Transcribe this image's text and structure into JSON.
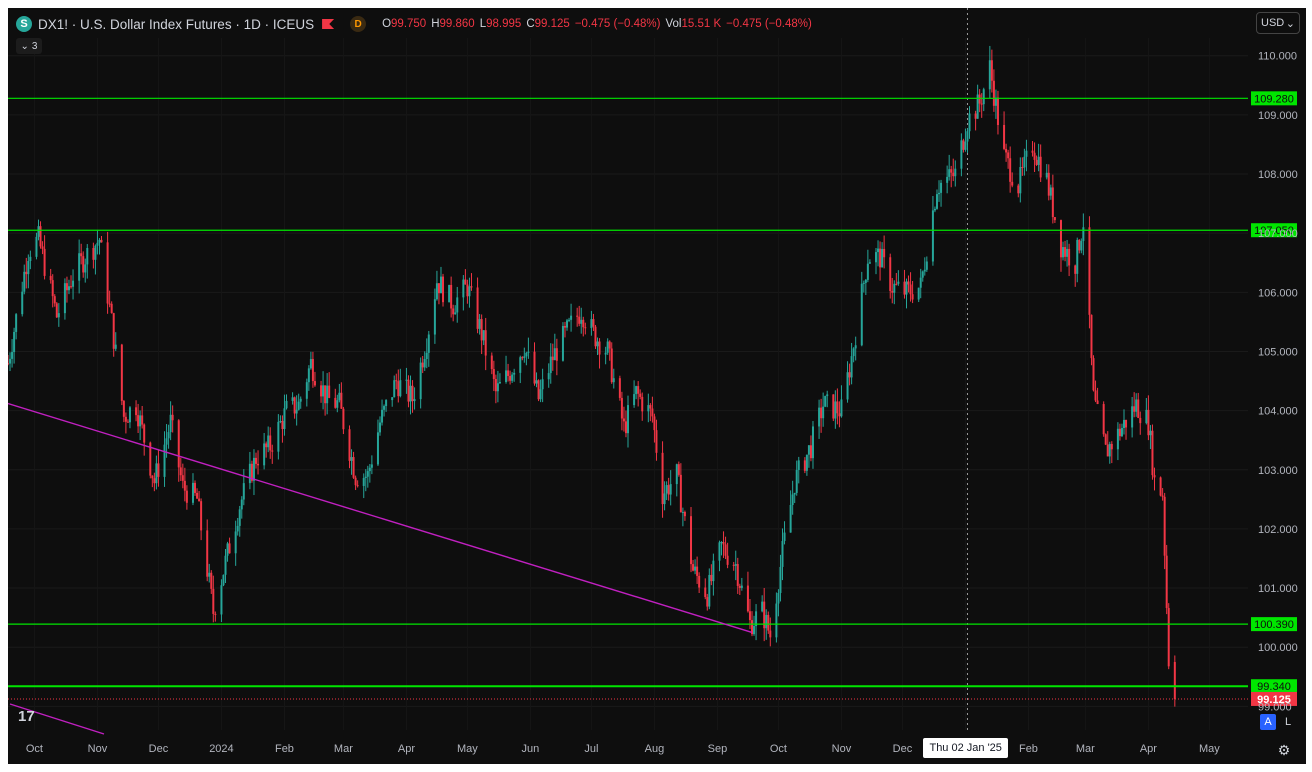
{
  "header": {
    "logo_letter": "S",
    "title": "DX1! · U.S. Dollar Index Futures · 1D · ICEUS",
    "d_badge": "D",
    "ohlc": [
      {
        "label": "O",
        "value": "99.750"
      },
      {
        "label": "H",
        "value": "99.860"
      },
      {
        "label": "L",
        "value": "98.995"
      },
      {
        "label": "C",
        "value": "99.125"
      },
      {
        "label": "",
        "value": "−0.475 (−0.48%)"
      },
      {
        "label": "Vol",
        "value": "15.51 K"
      },
      {
        "label": "",
        "value": "−0.475 (−0.48%)"
      }
    ],
    "collapse_count": "3",
    "currency": "USD"
  },
  "crosshair_date": "Thu 02 Jan '25",
  "buttons": {
    "auto": "A",
    "log": "L"
  },
  "tv_logo": "17",
  "colors": {
    "background": "#0e0e0e",
    "up": "#26a69a",
    "down": "#f23645",
    "level_line": "#00e600",
    "trend_line": "#c020c0"
  },
  "chart_data": {
    "type": "candlestick",
    "ylim": [
      98.6,
      110.3
    ],
    "y_ticks": [
      "110.000",
      "109.000",
      "108.000",
      "107.000",
      "106.000",
      "105.000",
      "104.000",
      "103.000",
      "102.000",
      "101.000",
      "100.000",
      "99.000"
    ],
    "x_ticks": [
      "Oct",
      "Nov",
      "Dec",
      "2024",
      "Feb",
      "Mar",
      "Apr",
      "May",
      "Jun",
      "Jul",
      "Aug",
      "Sep",
      "Oct",
      "Nov",
      "Dec",
      "Jan",
      "Feb",
      "Mar",
      "Apr",
      "May"
    ],
    "x_range": [
      "2023-09-18",
      "2025-05-20"
    ],
    "levels": [
      {
        "price": 109.28,
        "label": "109.280"
      },
      {
        "price": 107.05,
        "label": "107.050"
      },
      {
        "price": 100.39,
        "label": "100.390"
      },
      {
        "price": 99.34,
        "label": "99.340"
      }
    ],
    "last_price": {
      "price": 99.125,
      "label": "99.125"
    },
    "trendlines": [
      {
        "from": {
          "date": "2023-09-18",
          "price": 104.12
        },
        "to": {
          "date": "2024-09-18",
          "price": 100.25
        }
      }
    ],
    "anchors": [
      [
        "2023-09-18",
        104.8
      ],
      [
        "2023-09-28",
        106.7
      ],
      [
        "2023-10-03",
        106.9
      ],
      [
        "2023-10-12",
        105.6
      ],
      [
        "2023-10-20",
        106.3
      ],
      [
        "2023-10-26",
        106.6
      ],
      [
        "2023-11-02",
        106.9
      ],
      [
        "2023-11-08",
        105.5
      ],
      [
        "2023-11-14",
        103.9
      ],
      [
        "2023-11-20",
        104.1
      ],
      [
        "2023-11-29",
        102.8
      ],
      [
        "2023-12-07",
        103.8
      ],
      [
        "2023-12-13",
        102.7
      ],
      [
        "2023-12-20",
        102.5
      ],
      [
        "2023-12-28",
        100.6
      ],
      [
        "2024-01-02",
        101.3
      ],
      [
        "2024-01-10",
        102.4
      ],
      [
        "2024-01-18",
        103.2
      ],
      [
        "2024-01-25",
        103.4
      ],
      [
        "2024-02-02",
        104.0
      ],
      [
        "2024-02-08",
        104.1
      ],
      [
        "2024-02-14",
        104.8
      ],
      [
        "2024-02-22",
        104.2
      ],
      [
        "2024-02-28",
        104.1
      ],
      [
        "2024-03-07",
        102.9
      ],
      [
        "2024-03-13",
        102.9
      ],
      [
        "2024-03-19",
        103.8
      ],
      [
        "2024-03-27",
        104.5
      ],
      [
        "2024-04-04",
        104.2
      ],
      [
        "2024-04-11",
        105.2
      ],
      [
        "2024-04-16",
        106.2
      ],
      [
        "2024-04-24",
        105.8
      ],
      [
        "2024-05-01",
        106.1
      ],
      [
        "2024-05-08",
        105.3
      ],
      [
        "2024-05-15",
        104.3
      ],
      [
        "2024-05-21",
        104.6
      ],
      [
        "2024-05-29",
        105.1
      ],
      [
        "2024-06-05",
        104.2
      ],
      [
        "2024-06-12",
        104.9
      ],
      [
        "2024-06-20",
        105.4
      ],
      [
        "2024-06-26",
        105.7
      ],
      [
        "2024-07-02",
        105.3
      ],
      [
        "2024-07-09",
        105.0
      ],
      [
        "2024-07-17",
        103.7
      ],
      [
        "2024-07-23",
        104.3
      ],
      [
        "2024-07-31",
        103.9
      ],
      [
        "2024-08-05",
        102.6
      ],
      [
        "2024-08-12",
        102.9
      ],
      [
        "2024-08-20",
        101.3
      ],
      [
        "2024-08-27",
        100.9
      ],
      [
        "2024-09-03",
        101.7
      ],
      [
        "2024-09-10",
        101.4
      ],
      [
        "2024-09-17",
        100.4
      ],
      [
        "2024-09-23",
        100.6
      ],
      [
        "2024-09-27",
        100.2
      ],
      [
        "2024-10-03",
        101.6
      ],
      [
        "2024-10-09",
        102.8
      ],
      [
        "2024-10-17",
        103.4
      ],
      [
        "2024-10-23",
        104.1
      ],
      [
        "2024-11-01",
        104.0
      ],
      [
        "2024-11-06",
        104.9
      ],
      [
        "2024-11-14",
        106.6
      ],
      [
        "2024-11-20",
        106.6
      ],
      [
        "2024-11-26",
        106.1
      ],
      [
        "2024-12-03",
        106.0
      ],
      [
        "2024-12-10",
        106.1
      ],
      [
        "2024-12-18",
        107.8
      ],
      [
        "2024-12-27",
        108.0
      ],
      [
        "2025-01-02",
        108.9
      ],
      [
        "2025-01-08",
        109.2
      ],
      [
        "2025-01-13",
        109.8
      ],
      [
        "2025-01-20",
        108.3
      ],
      [
        "2025-01-27",
        107.8
      ],
      [
        "2025-02-03",
        108.5
      ],
      [
        "2025-02-10",
        107.9
      ],
      [
        "2025-02-17",
        106.8
      ],
      [
        "2025-02-24",
        106.5
      ],
      [
        "2025-02-28",
        107.2
      ],
      [
        "2025-03-05",
        104.2
      ],
      [
        "2025-03-11",
        103.3
      ],
      [
        "2025-03-17",
        103.6
      ],
      [
        "2025-03-26",
        104.1
      ],
      [
        "2025-04-01",
        103.8
      ],
      [
        "2025-04-04",
        102.8
      ],
      [
        "2025-04-08",
        102.6
      ],
      [
        "2025-04-10",
        100.7
      ],
      [
        "2025-04-11",
        99.8
      ],
      [
        "2025-04-14",
        99.125
      ]
    ]
  }
}
